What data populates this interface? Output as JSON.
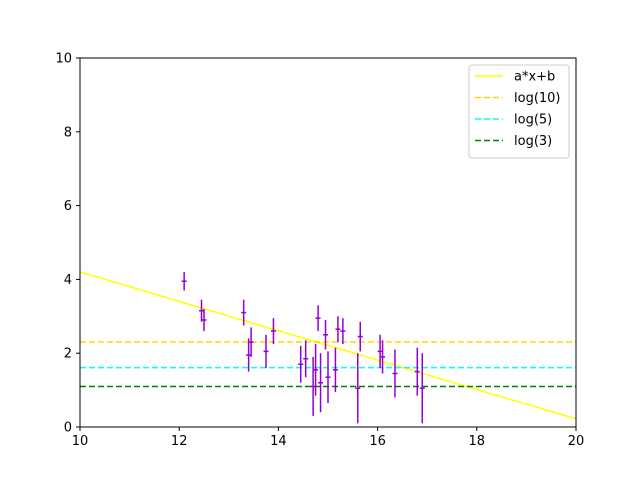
{
  "chart_data": {
    "type": "scatter",
    "title": "",
    "xlabel": "",
    "ylabel": "",
    "xlim": [
      10,
      20
    ],
    "ylim": [
      0,
      10
    ],
    "x_ticks": [
      "10",
      "12",
      "14",
      "16",
      "18",
      "20"
    ],
    "y_ticks": [
      "0",
      "2",
      "4",
      "6",
      "8",
      "10"
    ],
    "x_tick_values": [
      10,
      12,
      14,
      16,
      18,
      20
    ],
    "y_tick_values": [
      0,
      2,
      4,
      6,
      8,
      10
    ],
    "grid": false,
    "legend_position": "top-right",
    "points": {
      "color": "#9400D3",
      "data": [
        {
          "x": 12.1,
          "y": 3.95,
          "xerr": 0.05,
          "yerr": 0.25
        },
        {
          "x": 12.45,
          "y": 3.15,
          "xerr": 0.05,
          "yerr": 0.3
        },
        {
          "x": 12.5,
          "y": 2.9,
          "xerr": 0.05,
          "yerr": 0.3
        },
        {
          "x": 13.3,
          "y": 3.1,
          "xerr": 0.05,
          "yerr": 0.35
        },
        {
          "x": 13.4,
          "y": 1.95,
          "xerr": 0.05,
          "yerr": 0.45
        },
        {
          "x": 13.45,
          "y": 2.3,
          "xerr": 0.05,
          "yerr": 0.4
        },
        {
          "x": 13.75,
          "y": 2.05,
          "xerr": 0.05,
          "yerr": 0.45
        },
        {
          "x": 13.9,
          "y": 2.6,
          "xerr": 0.05,
          "yerr": 0.35
        },
        {
          "x": 14.45,
          "y": 1.7,
          "xerr": 0.05,
          "yerr": 0.5
        },
        {
          "x": 14.55,
          "y": 1.85,
          "xerr": 0.05,
          "yerr": 0.5
        },
        {
          "x": 14.7,
          "y": 1.1,
          "xerr": 0.05,
          "yerr": 0.8
        },
        {
          "x": 14.75,
          "y": 1.55,
          "xerr": 0.05,
          "yerr": 0.7
        },
        {
          "x": 14.8,
          "y": 2.95,
          "xerr": 0.05,
          "yerr": 0.35
        },
        {
          "x": 14.85,
          "y": 1.2,
          "xerr": 0.05,
          "yerr": 0.8
        },
        {
          "x": 14.95,
          "y": 2.5,
          "xerr": 0.05,
          "yerr": 0.4
        },
        {
          "x": 15.0,
          "y": 1.35,
          "xerr": 0.05,
          "yerr": 0.7
        },
        {
          "x": 15.15,
          "y": 1.55,
          "xerr": 0.05,
          "yerr": 0.6
        },
        {
          "x": 15.2,
          "y": 2.65,
          "xerr": 0.05,
          "yerr": 0.35
        },
        {
          "x": 15.3,
          "y": 2.6,
          "xerr": 0.05,
          "yerr": 0.35
        },
        {
          "x": 15.6,
          "y": 1.05,
          "xerr": 0.05,
          "yerr": 0.95
        },
        {
          "x": 15.65,
          "y": 2.45,
          "xerr": 0.05,
          "yerr": 0.4
        },
        {
          "x": 16.05,
          "y": 2.05,
          "xerr": 0.05,
          "yerr": 0.45
        },
        {
          "x": 16.1,
          "y": 1.9,
          "xerr": 0.05,
          "yerr": 0.45
        },
        {
          "x": 16.35,
          "y": 1.45,
          "xerr": 0.05,
          "yerr": 0.65
        },
        {
          "x": 16.8,
          "y": 1.5,
          "xerr": 0.05,
          "yerr": 0.65
        },
        {
          "x": 16.9,
          "y": 1.05,
          "xerr": 0.05,
          "yerr": 0.95
        }
      ]
    },
    "lines": [
      {
        "name": "a*x+b",
        "kind": "fit",
        "color": "#FFFF00",
        "dash": "solid",
        "x": [
          10,
          20
        ],
        "y": [
          4.2,
          0.22
        ]
      },
      {
        "name": "log(10)",
        "kind": "hline",
        "color": "#FFD700",
        "dash": "dashed",
        "y": 2.302585
      },
      {
        "name": "log(5)",
        "kind": "hline",
        "color": "#00FFFF",
        "dash": "dashed",
        "y": 1.609438
      },
      {
        "name": "log(3)",
        "kind": "hline",
        "color": "#008000",
        "dash": "dashed",
        "y": 1.098612
      }
    ]
  }
}
